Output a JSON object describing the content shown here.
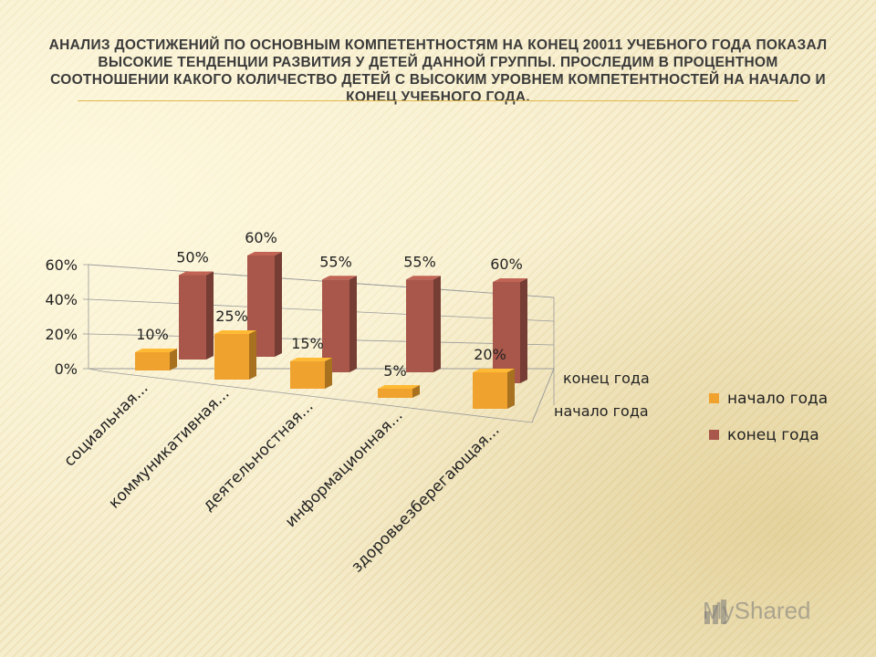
{
  "slide": {
    "title": "Анализ достижений по основным компетентностям на конец 20011 учебного года показал высокие тенденции развития у детей данной группы. Проследим в процентном соотношении какого количество детей с высоким уровнем компетентностей на начало и конец учебного года.",
    "watermark": "MyShared"
  },
  "colors": {
    "start": "#f0a22e",
    "end": "#a8574a",
    "background": "#f6edcd"
  },
  "chart_data": {
    "type": "bar",
    "three_d": true,
    "categories": [
      "социальная...",
      "коммуникативная...",
      "деятельностная...",
      "информационная...",
      "здоровьезберегающая..."
    ],
    "series": [
      {
        "name": "начало года",
        "values": [
          10,
          25,
          15,
          5,
          20
        ],
        "labels": [
          "10%",
          "25%",
          "15%",
          "5%",
          "20%"
        ]
      },
      {
        "name": "конец года",
        "values": [
          50,
          60,
          55,
          55,
          60
        ],
        "labels": [
          "50%",
          "60%",
          "55%",
          "55%",
          "60%"
        ]
      }
    ],
    "depth_labels": [
      "конец года",
      "начало года"
    ],
    "y_ticks": [
      "0%",
      "20%",
      "40%",
      "60%"
    ],
    "ylim": [
      0,
      60
    ],
    "legend": [
      {
        "name": "начало года"
      },
      {
        "name": "конец года"
      }
    ],
    "legend_position": "right",
    "grid": true
  }
}
